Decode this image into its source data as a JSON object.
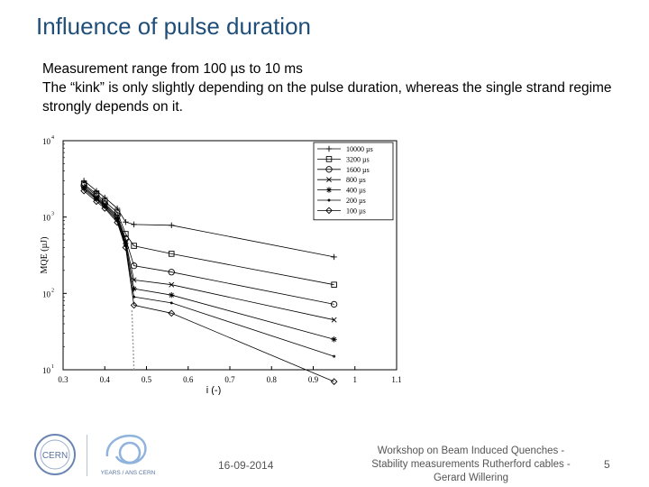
{
  "slide": {
    "title": "Influence of pulse duration",
    "bullets": [
      "Measurement range from 100 µs to 10 ms",
      "The “kink” is only slightly depending on the pulse duration, whereas the single strand regime strongly depends on it."
    ]
  },
  "footer": {
    "date": "16-09-2014",
    "workshop": "Workshop on Beam Induced Quenches - Stability measurements Rutherford cables - Gerard Willering",
    "page": "5",
    "logo_cern_text": "CERN",
    "logo_60_text": "YEARS / ANS CERN"
  },
  "chart_data": {
    "type": "line",
    "xlabel": "i (-)",
    "ylabel": "MQE (µJ)",
    "xlim": [
      0.3,
      1.1
    ],
    "ylim_log": [
      1,
      4
    ],
    "x_ticks": [
      "0.3",
      "0.4",
      "0.5",
      "0.6",
      "0.7",
      "0.8",
      "0.9",
      "1",
      "1.1"
    ],
    "x_tick_values": [
      0.3,
      0.4,
      0.5,
      0.6,
      0.7,
      0.8,
      0.9,
      1.0,
      1.1
    ],
    "y_ticks": [
      "10",
      "10",
      "10",
      "10"
    ],
    "y_tick_exponents": [
      "1",
      "2",
      "3",
      "4"
    ],
    "y_tick_values": [
      1,
      2,
      3,
      4
    ],
    "series": [
      {
        "name": "10000 µs",
        "marker": "plus",
        "x": [
          0.35,
          0.38,
          0.4,
          0.43,
          0.45,
          0.47,
          0.56,
          0.95
        ],
        "y": [
          3000,
          2200,
          1800,
          1300,
          860,
          800,
          780,
          300
        ]
      },
      {
        "name": "3200 µs",
        "marker": "square",
        "x": [
          0.35,
          0.38,
          0.4,
          0.43,
          0.45,
          0.47,
          0.56,
          0.95
        ],
        "y": [
          2700,
          2000,
          1600,
          1150,
          600,
          420,
          330,
          130
        ]
      },
      {
        "name": "1600 µs",
        "marker": "circle",
        "x": [
          0.35,
          0.38,
          0.4,
          0.43,
          0.45,
          0.47,
          0.56,
          0.95
        ],
        "y": [
          2600,
          1900,
          1500,
          1050,
          520,
          230,
          190,
          72
        ]
      },
      {
        "name": "800 µs",
        "marker": "x",
        "x": [
          0.35,
          0.38,
          0.4,
          0.43,
          0.45,
          0.47,
          0.56,
          0.95
        ],
        "y": [
          2500,
          1800,
          1450,
          1000,
          480,
          150,
          130,
          45
        ]
      },
      {
        "name": "400 µs",
        "marker": "star",
        "x": [
          0.35,
          0.38,
          0.4,
          0.43,
          0.45,
          0.47,
          0.56,
          0.95
        ],
        "y": [
          2400,
          1750,
          1400,
          950,
          450,
          115,
          95,
          25
        ]
      },
      {
        "name": "200 µs",
        "marker": "dot",
        "x": [
          0.35,
          0.38,
          0.4,
          0.43,
          0.45,
          0.47,
          0.56,
          0.95
        ],
        "y": [
          2300,
          1700,
          1350,
          900,
          420,
          90,
          75,
          15
        ]
      },
      {
        "name": "100 µs",
        "marker": "diamond",
        "x": [
          0.35,
          0.38,
          0.4,
          0.43,
          0.45,
          0.47,
          0.56,
          0.95
        ],
        "y": [
          2200,
          1600,
          1300,
          850,
          400,
          70,
          55,
          7
        ]
      }
    ],
    "dashed_line": {
      "x": [
        0.465,
        0.47
      ],
      "y": [
        60,
        8
      ]
    },
    "legend_position": "top-right"
  }
}
